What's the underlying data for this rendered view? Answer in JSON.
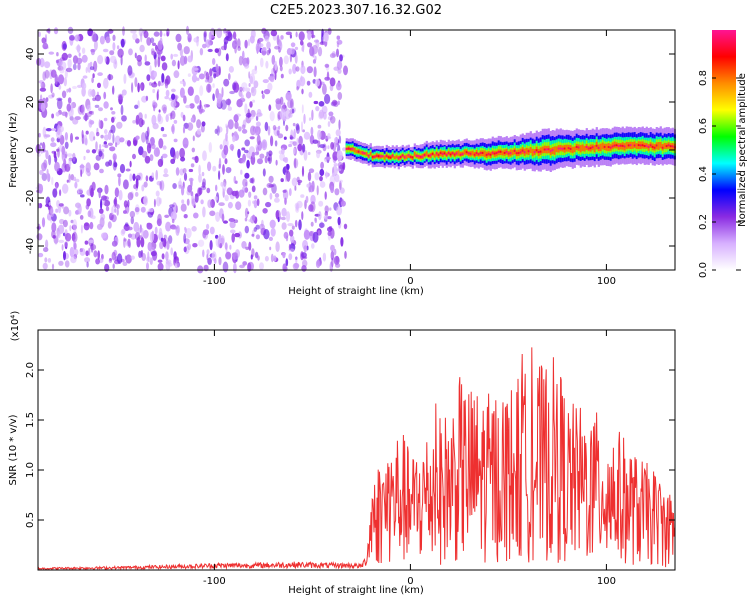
{
  "figure": {
    "title": "C2E5.2023.307.16.32.G02"
  },
  "chart_data": [
    {
      "type": "heatmap",
      "xlabel": "Height of straight line (km)",
      "ylabel": "Frequency (Hz)",
      "xlim": [
        -190,
        135
      ],
      "ylim": [
        -50,
        50
      ],
      "xticks": [
        -100,
        0,
        100
      ],
      "xtick_labels": [
        "-100",
        "0",
        "100"
      ],
      "yticks": [
        -40,
        -20,
        0,
        20,
        40
      ],
      "ytick_labels": [
        "-40",
        "-20",
        "0",
        "20",
        "40"
      ],
      "noise_region": {
        "x_range": [
          -190,
          -33
        ],
        "y_range": [
          -50,
          50
        ]
      },
      "echo_trace": {
        "x": [
          -33,
          -30,
          -25,
          -20,
          -10,
          0,
          10,
          20,
          30,
          40,
          50,
          60,
          70,
          80,
          90,
          100,
          110,
          120,
          130,
          135
        ],
        "center_hz": [
          1,
          0,
          -1.5,
          -2.5,
          -3,
          -2.5,
          -2,
          -1.5,
          -1.5,
          -1.5,
          -1,
          -0.5,
          0,
          0.5,
          1,
          1.5,
          1.5,
          1.5,
          1.5,
          1.5
        ],
        "halfwidth_hz": [
          2,
          2,
          2,
          2,
          2,
          2,
          2.5,
          2.5,
          2.5,
          3,
          3,
          3.5,
          4,
          3.5,
          3.5,
          3.5,
          3.5,
          3.5,
          3.5,
          3.5
        ]
      },
      "grid": false,
      "colorbar": {
        "label": "Normalized spectral amplitude",
        "range": [
          0,
          1
        ],
        "ticks": [
          0,
          0.2,
          0.4,
          0.6,
          0.8
        ],
        "tick_labels": [
          "0.0",
          "0.2",
          "0.4",
          "0.6",
          "0.8"
        ],
        "colors": [
          "#ffffff",
          "#d7b0ff",
          "#8a2be2",
          "#0000ff",
          "#00ffff",
          "#00ff00",
          "#ffff00",
          "#ff8c00",
          "#ff0000",
          "#ff1493"
        ]
      }
    },
    {
      "type": "line",
      "xlabel": "Height of straight line (km)",
      "ylabel": "SNR (10 * v/v)",
      "yscale_label": "(x10⁴)",
      "xlim": [
        -190,
        135
      ],
      "ylim": [
        0,
        2.4
      ],
      "xticks": [
        -100,
        0,
        100
      ],
      "xtick_labels": [
        "-100",
        "0",
        "100"
      ],
      "yticks": [
        0.5,
        1.0,
        1.5,
        2.0
      ],
      "ytick_labels": [
        "0.5",
        "1.0",
        "1.5",
        "2.0"
      ],
      "grid": false,
      "color": "#ee3030",
      "series": [
        {
          "x": [
            -190,
            -150,
            -110,
            -100,
            -80,
            -60,
            -40,
            -30,
            -25,
            -22,
            -20,
            -15,
            -10,
            -5,
            0,
            10,
            20,
            25,
            30,
            40,
            50,
            60,
            70,
            75,
            80,
            90,
            100,
            110,
            115,
            120,
            125,
            130,
            135
          ],
          "values": [
            0.02,
            0.03,
            0.05,
            0.06,
            0.06,
            0.07,
            0.06,
            0.06,
            0.05,
            0.15,
            0.6,
            0.75,
            0.85,
            0.95,
            0.75,
            0.95,
            1.05,
            1.25,
            1.2,
            1.15,
            1.2,
            1.3,
            1.35,
            1.4,
            1.1,
            1.05,
            1.0,
            0.85,
            0.75,
            0.7,
            0.65,
            0.55,
            0.5
          ]
        }
      ]
    }
  ]
}
